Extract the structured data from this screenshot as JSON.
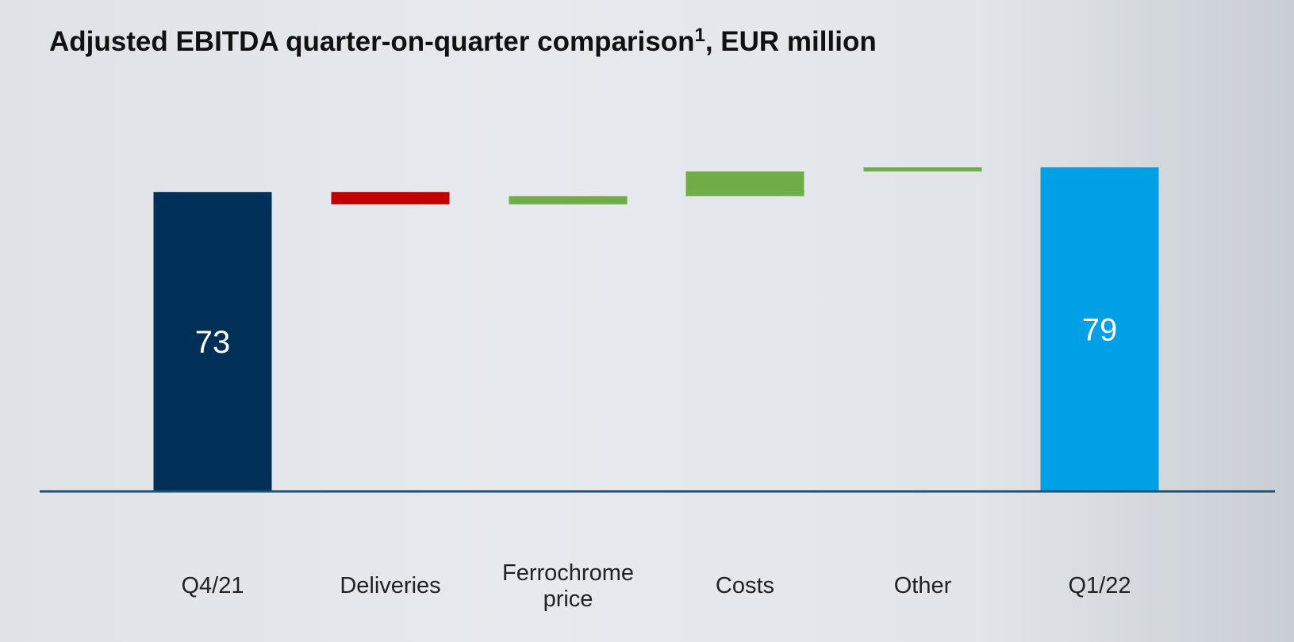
{
  "chart_data": {
    "type": "waterfall",
    "title": {
      "main": "Adjusted EBITDA quarter-on-quarter comparison",
      "superscript": "1",
      "suffix": ", EUR million"
    },
    "categories": [
      "Q4/21",
      "Deliveries",
      "Ferrochrome price",
      "Costs",
      "Other",
      "Q1/22"
    ],
    "values": [
      73,
      -3,
      2,
      6,
      1,
      79
    ],
    "measure": [
      "absolute",
      "relative",
      "relative",
      "relative",
      "relative",
      "absolute"
    ],
    "colors": [
      "#003057",
      "#c00000",
      "#70ad47",
      "#70ad47",
      "#70ad47",
      "#00a0e6"
    ],
    "ylim": [
      0,
      80
    ]
  }
}
